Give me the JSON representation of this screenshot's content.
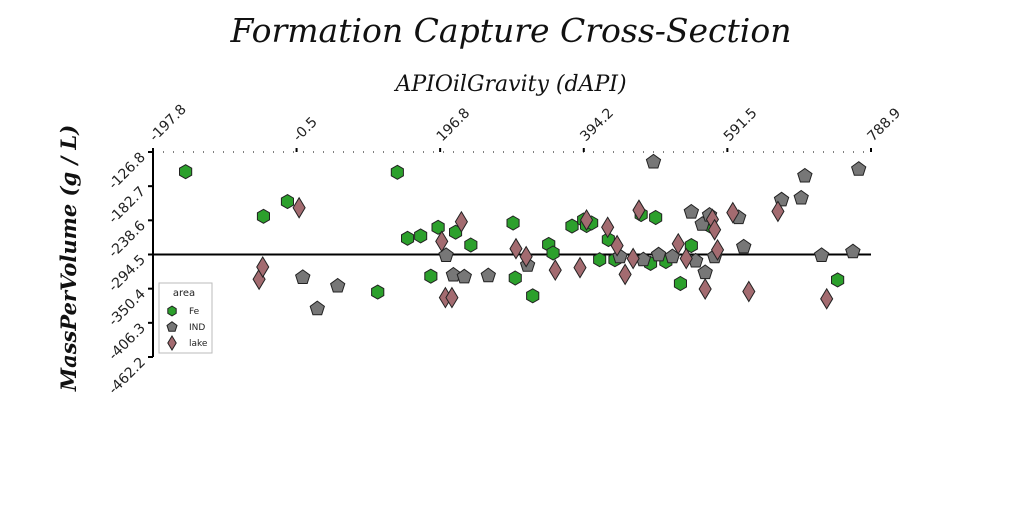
{
  "chart_data": {
    "type": "scatter",
    "title": "Formation Capture Cross-Section",
    "xlabel": "APIOilGravity (dAPI)",
    "ylabel": "MassPerVolume (g / L)",
    "x_ticks": [
      "-197.8",
      "-0.5",
      "196.8",
      "394.2",
      "591.5",
      "788.9"
    ],
    "y_ticks": [
      "-126.8",
      "-182.7",
      "-238.6",
      "-294.5",
      "-350.4",
      "-406.3",
      "-462.2"
    ],
    "xlim": [
      -197.8,
      788.9
    ],
    "ylim": [
      -462.2,
      -126.8
    ],
    "reference_line_y": -294.5,
    "x_axis_position": "top",
    "grid": false,
    "legend": {
      "title": "area",
      "position": "left",
      "entries": [
        "Fe",
        "IND",
        "lake"
      ]
    },
    "series": [
      {
        "name": "Fe",
        "marker": "hexagon",
        "color": "#2ca02c",
        "points": [
          [
            -153,
            -159
          ],
          [
            -46,
            -232
          ],
          [
            -13,
            -208
          ],
          [
            111,
            -356
          ],
          [
            138,
            -160
          ],
          [
            152,
            -268
          ],
          [
            170,
            -264
          ],
          [
            184,
            -330
          ],
          [
            194,
            -250
          ],
          [
            218,
            -258
          ],
          [
            239,
            -279
          ],
          [
            297,
            -243
          ],
          [
            300,
            -333
          ],
          [
            324,
            -362
          ],
          [
            346,
            -278
          ],
          [
            352,
            -292
          ],
          [
            378,
            -248
          ],
          [
            394,
            -238
          ],
          [
            398,
            -247
          ],
          [
            405,
            -243
          ],
          [
            416,
            -303
          ],
          [
            428,
            -270
          ],
          [
            437,
            -303
          ],
          [
            473,
            -229
          ],
          [
            486,
            -309
          ],
          [
            493,
            -234
          ],
          [
            507,
            -306
          ],
          [
            527,
            -342
          ],
          [
            542,
            -280
          ],
          [
            568,
            -248
          ],
          [
            743,
            -336
          ]
        ]
      },
      {
        "name": "IND",
        "marker": "pentagon",
        "color": "#777777",
        "points": [
          [
            56,
            -346
          ],
          [
            8,
            -332
          ],
          [
            28,
            -383
          ],
          [
            205,
            -296
          ],
          [
            215,
            -328
          ],
          [
            230,
            -331
          ],
          [
            263,
            -329
          ],
          [
            317,
            -312
          ],
          [
            444,
            -298
          ],
          [
            476,
            -303
          ],
          [
            490,
            -143
          ],
          [
            497,
            -295
          ],
          [
            516,
            -298
          ],
          [
            542,
            -225
          ],
          [
            548,
            -305
          ],
          [
            557,
            -245
          ],
          [
            561,
            -324
          ],
          [
            567,
            -230
          ],
          [
            574,
            -298
          ],
          [
            607,
            -234
          ],
          [
            614,
            -282
          ],
          [
            666,
            -205
          ],
          [
            693,
            -202
          ],
          [
            698,
            -166
          ],
          [
            721,
            -296
          ],
          [
            764,
            -290
          ],
          [
            772,
            -155
          ]
        ]
      },
      {
        "name": "lake",
        "marker": "diamond",
        "color": "#a36b70",
        "points": [
          [
            -52,
            -335
          ],
          [
            -47,
            -315
          ],
          [
            3,
            -218
          ],
          [
            199,
            -273
          ],
          [
            204,
            -365
          ],
          [
            213,
            -365
          ],
          [
            226,
            -241
          ],
          [
            301,
            -285
          ],
          [
            315,
            -298
          ],
          [
            355,
            -320
          ],
          [
            389,
            -316
          ],
          [
            398,
            -238
          ],
          [
            427,
            -250
          ],
          [
            440,
            -280
          ],
          [
            451,
            -327
          ],
          [
            462,
            -301
          ],
          [
            470,
            -222
          ],
          [
            524,
            -277
          ],
          [
            535,
            -301
          ],
          [
            561,
            -351
          ],
          [
            571,
            -237
          ],
          [
            574,
            -254
          ],
          [
            578,
            -287
          ],
          [
            599,
            -226
          ],
          [
            621,
            -355
          ],
          [
            661,
            -224
          ],
          [
            728,
            -367
          ]
        ]
      }
    ]
  }
}
